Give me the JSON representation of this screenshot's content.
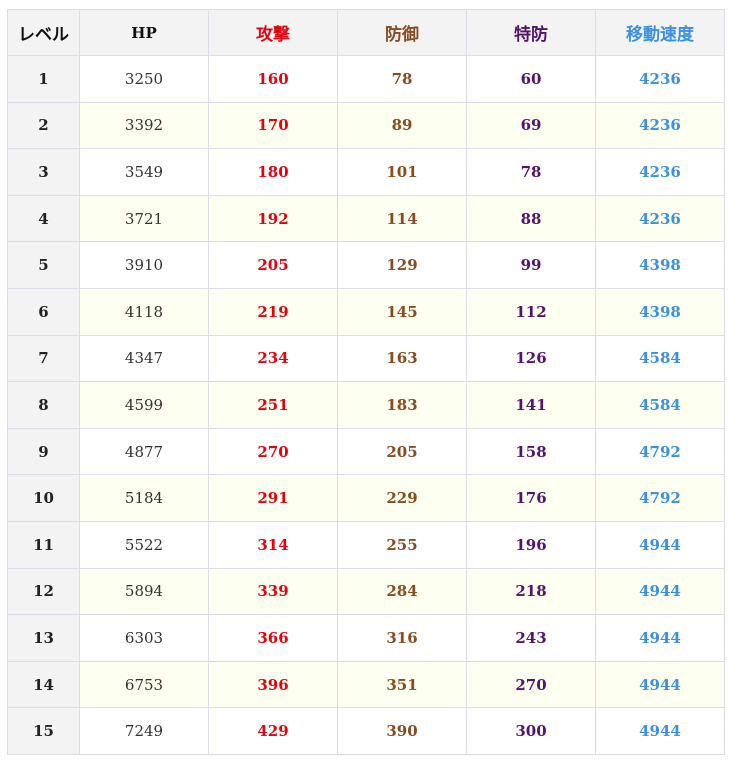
{
  "headers": {
    "level": "レベル",
    "hp": "HP",
    "attack": "攻撃",
    "defense": "防御",
    "sp_defense": "特防",
    "move_speed": "移動速度"
  },
  "colors": {
    "attack": "#e8000c",
    "defense": "#8a4b1e",
    "sp_defense": "#55136f",
    "move_speed": "#3a8fe6",
    "row_alt_background": "#fdfff0",
    "header_background": "#f3f3f3"
  },
  "rows": [
    {
      "level": "1",
      "hp": "3250",
      "attack": "160",
      "defense": "78",
      "sp_defense": "60",
      "move_speed": "4236"
    },
    {
      "level": "2",
      "hp": "3392",
      "attack": "170",
      "defense": "89",
      "sp_defense": "69",
      "move_speed": "4236"
    },
    {
      "level": "3",
      "hp": "3549",
      "attack": "180",
      "defense": "101",
      "sp_defense": "78",
      "move_speed": "4236"
    },
    {
      "level": "4",
      "hp": "3721",
      "attack": "192",
      "defense": "114",
      "sp_defense": "88",
      "move_speed": "4236"
    },
    {
      "level": "5",
      "hp": "3910",
      "attack": "205",
      "defense": "129",
      "sp_defense": "99",
      "move_speed": "4398"
    },
    {
      "level": "6",
      "hp": "4118",
      "attack": "219",
      "defense": "145",
      "sp_defense": "112",
      "move_speed": "4398"
    },
    {
      "level": "7",
      "hp": "4347",
      "attack": "234",
      "defense": "163",
      "sp_defense": "126",
      "move_speed": "4584"
    },
    {
      "level": "8",
      "hp": "4599",
      "attack": "251",
      "defense": "183",
      "sp_defense": "141",
      "move_speed": "4584"
    },
    {
      "level": "9",
      "hp": "4877",
      "attack": "270",
      "defense": "205",
      "sp_defense": "158",
      "move_speed": "4792"
    },
    {
      "level": "10",
      "hp": "5184",
      "attack": "291",
      "defense": "229",
      "sp_defense": "176",
      "move_speed": "4792"
    },
    {
      "level": "11",
      "hp": "5522",
      "attack": "314",
      "defense": "255",
      "sp_defense": "196",
      "move_speed": "4944"
    },
    {
      "level": "12",
      "hp": "5894",
      "attack": "339",
      "defense": "284",
      "sp_defense": "218",
      "move_speed": "4944"
    },
    {
      "level": "13",
      "hp": "6303",
      "attack": "366",
      "defense": "316",
      "sp_defense": "243",
      "move_speed": "4944"
    },
    {
      "level": "14",
      "hp": "6753",
      "attack": "396",
      "defense": "351",
      "sp_defense": "270",
      "move_speed": "4944"
    },
    {
      "level": "15",
      "hp": "7249",
      "attack": "429",
      "defense": "390",
      "sp_defense": "300",
      "move_speed": "4944"
    }
  ]
}
